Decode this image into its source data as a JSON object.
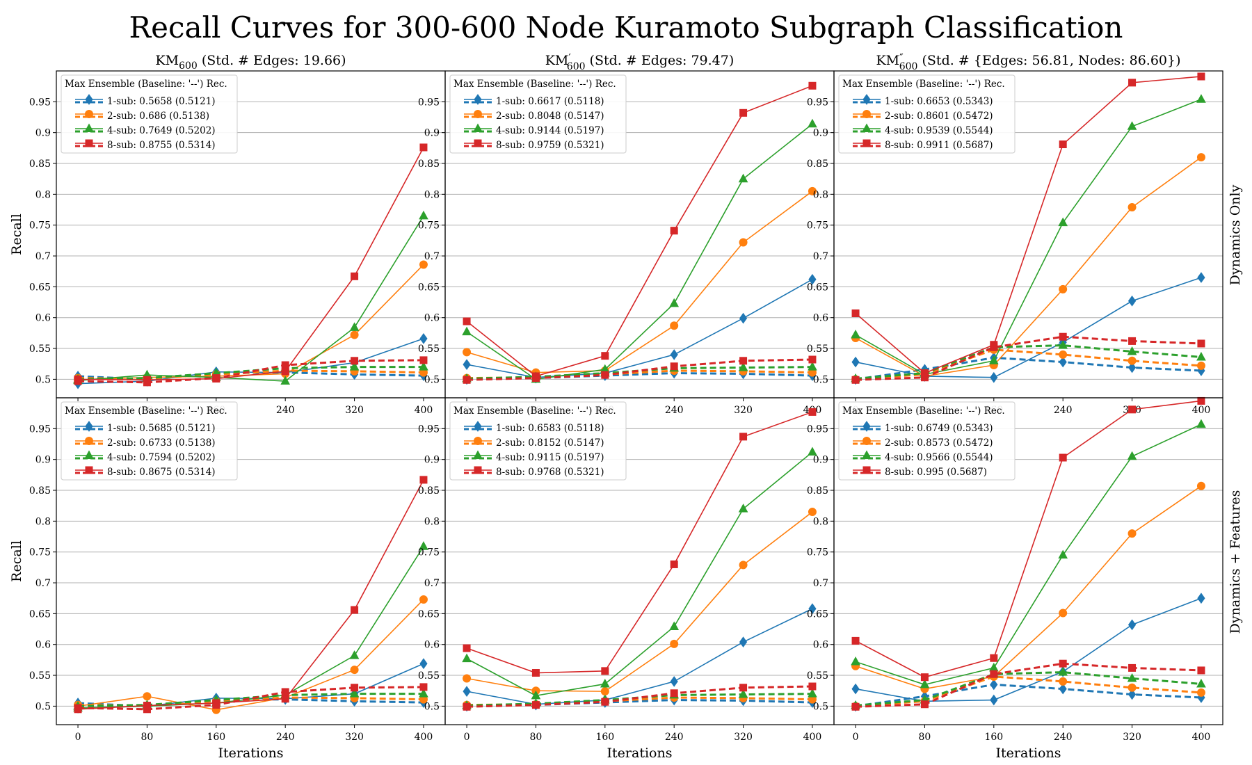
{
  "figure": {
    "suptitle": "Recall Curves for 300-600 Node Kuramoto Subgraph Classification",
    "row_labels": [
      "Dynamics Only",
      "Dynamics + Features"
    ],
    "col_titles": [
      {
        "base": "KM",
        "mark": "",
        "sub": "600",
        "rest": " (Std. # Edges: 19.66)"
      },
      {
        "base": "KM",
        "mark": "′",
        "sub": "600",
        "rest": " (Std. # Edges: 79.47)"
      },
      {
        "base": "KM",
        "mark": "″",
        "sub": "600",
        "rest": " (Std. # {Edges: 56.81, Nodes: 86.60})"
      }
    ],
    "xlabel": "Iterations",
    "ylabel": "Recall",
    "legend_title": "Max Ensemble (Baseline: '--') Rec.",
    "colors": {
      "1-sub": "#1f77b4",
      "2-sub": "#ff7f0e",
      "4-sub": "#2ca02c",
      "8-sub": "#d62728"
    },
    "markers": {
      "1-sub": "diamond",
      "2-sub": "circle",
      "4-sub": "triangle",
      "8-sub": "square"
    }
  },
  "chart_data": [
    {
      "type": "line",
      "row": 0,
      "col": 0,
      "x": [
        0,
        80,
        160,
        240,
        320,
        400
      ],
      "ylim": [
        0.47,
        1.0
      ],
      "yticks": [
        0.5,
        0.55,
        0.6,
        0.65,
        0.7,
        0.75,
        0.8,
        0.85,
        0.9,
        0.95
      ],
      "series": [
        {
          "name": "1-sub",
          "legend": "1-sub: 0.5658 (0.5121)",
          "values": [
            0.493,
            0.497,
            0.512,
            0.511,
            0.527,
            0.566
          ],
          "baseline": [
            0.505,
            0.5,
            0.51,
            0.511,
            0.508,
            0.506
          ]
        },
        {
          "name": "2-sub",
          "legend": "2-sub: 0.686 (0.5138)",
          "values": [
            0.499,
            0.503,
            0.505,
            0.509,
            0.572,
            0.686
          ],
          "baseline": [
            0.502,
            0.501,
            0.508,
            0.514,
            0.513,
            0.511
          ]
        },
        {
          "name": "4-sub",
          "legend": "4-sub: 0.7649 (0.5202)",
          "values": [
            0.498,
            0.507,
            0.503,
            0.497,
            0.584,
            0.765
          ],
          "baseline": [
            0.5,
            0.502,
            0.51,
            0.518,
            0.52,
            0.52
          ]
        },
        {
          "name": "8-sub",
          "legend": "8-sub: 0.8755 (0.5314)",
          "values": [
            0.5,
            0.499,
            0.501,
            0.513,
            0.667,
            0.876
          ],
          "baseline": [
            0.497,
            0.495,
            0.502,
            0.523,
            0.53,
            0.531
          ]
        }
      ]
    },
    {
      "type": "line",
      "row": 0,
      "col": 1,
      "x": [
        0,
        80,
        160,
        240,
        320,
        400
      ],
      "ylim": [
        0.47,
        1.0
      ],
      "yticks": [
        0.5,
        0.55,
        0.6,
        0.65,
        0.7,
        0.75,
        0.8,
        0.85,
        0.9,
        0.95
      ],
      "series": [
        {
          "name": "1-sub",
          "legend": "1-sub: 0.6617 (0.5118)",
          "values": [
            0.524,
            0.503,
            0.51,
            0.54,
            0.599,
            0.662
          ],
          "baseline": [
            0.5,
            0.502,
            0.506,
            0.51,
            0.509,
            0.506
          ]
        },
        {
          "name": "2-sub",
          "legend": "2-sub: 0.8048 (0.5147)",
          "values": [
            0.544,
            0.511,
            0.514,
            0.587,
            0.722,
            0.805
          ],
          "baseline": [
            0.502,
            0.503,
            0.508,
            0.514,
            0.513,
            0.511
          ]
        },
        {
          "name": "4-sub",
          "legend": "4-sub: 0.9144 (0.5197)",
          "values": [
            0.577,
            0.5,
            0.516,
            0.623,
            0.825,
            0.914
          ],
          "baseline": [
            0.501,
            0.504,
            0.51,
            0.518,
            0.519,
            0.52
          ]
        },
        {
          "name": "8-sub",
          "legend": "8-sub: 0.9759 (0.5321)",
          "values": [
            0.594,
            0.505,
            0.538,
            0.741,
            0.932,
            0.976
          ],
          "baseline": [
            0.499,
            0.502,
            0.507,
            0.521,
            0.53,
            0.532
          ]
        }
      ]
    },
    {
      "type": "line",
      "row": 0,
      "col": 2,
      "x": [
        0,
        80,
        160,
        240,
        320,
        400
      ],
      "ylim": [
        0.47,
        1.0
      ],
      "yticks": [
        0.5,
        0.55,
        0.6,
        0.65,
        0.7,
        0.75,
        0.8,
        0.85,
        0.9,
        0.95
      ],
      "series": [
        {
          "name": "1-sub",
          "legend": "1-sub: 0.6653 (0.5343)",
          "values": [
            0.528,
            0.505,
            0.503,
            0.56,
            0.627,
            0.665
          ],
          "baseline": [
            0.5,
            0.516,
            0.535,
            0.528,
            0.519,
            0.514
          ]
        },
        {
          "name": "2-sub",
          "legend": "2-sub: 0.8601 (0.5472)",
          "values": [
            0.567,
            0.505,
            0.523,
            0.646,
            0.779,
            0.86
          ],
          "baseline": [
            0.5,
            0.508,
            0.548,
            0.54,
            0.53,
            0.522
          ]
        },
        {
          "name": "4-sub",
          "legend": "4-sub: 0.9539 (0.5544)",
          "values": [
            0.572,
            0.508,
            0.53,
            0.754,
            0.91,
            0.954
          ],
          "baseline": [
            0.501,
            0.51,
            0.552,
            0.555,
            0.545,
            0.536
          ]
        },
        {
          "name": "8-sub",
          "legend": "8-sub: 0.9911 (0.5687)",
          "values": [
            0.607,
            0.51,
            0.556,
            0.881,
            0.981,
            0.991
          ],
          "baseline": [
            0.499,
            0.503,
            0.552,
            0.569,
            0.562,
            0.558
          ]
        }
      ]
    },
    {
      "type": "line",
      "row": 1,
      "col": 0,
      "x": [
        0,
        80,
        160,
        240,
        320,
        400
      ],
      "ylim": [
        0.47,
        1.0
      ],
      "yticks": [
        0.5,
        0.55,
        0.6,
        0.65,
        0.7,
        0.75,
        0.8,
        0.85,
        0.9,
        0.95
      ],
      "series": [
        {
          "name": "1-sub",
          "legend": "1-sub: 0.5685 (0.5121)",
          "values": [
            0.497,
            0.5,
            0.513,
            0.512,
            0.52,
            0.569
          ],
          "baseline": [
            0.505,
            0.5,
            0.51,
            0.511,
            0.508,
            0.506
          ]
        },
        {
          "name": "2-sub",
          "legend": "2-sub: 0.6733 (0.5138)",
          "values": [
            0.5,
            0.516,
            0.494,
            0.514,
            0.559,
            0.673
          ],
          "baseline": [
            0.502,
            0.501,
            0.508,
            0.514,
            0.513,
            0.511
          ]
        },
        {
          "name": "4-sub",
          "legend": "4-sub: 0.7594 (0.5202)",
          "values": [
            0.497,
            0.5,
            0.505,
            0.518,
            0.582,
            0.759
          ],
          "baseline": [
            0.5,
            0.502,
            0.51,
            0.518,
            0.52,
            0.52
          ]
        },
        {
          "name": "8-sub",
          "legend": "8-sub: 0.8675 (0.5314)",
          "values": [
            0.495,
            0.501,
            0.505,
            0.512,
            0.656,
            0.867
          ],
          "baseline": [
            0.497,
            0.495,
            0.502,
            0.523,
            0.53,
            0.531
          ]
        }
      ]
    },
    {
      "type": "line",
      "row": 1,
      "col": 1,
      "x": [
        0,
        80,
        160,
        240,
        320,
        400
      ],
      "ylim": [
        0.47,
        1.0
      ],
      "yticks": [
        0.5,
        0.55,
        0.6,
        0.65,
        0.7,
        0.75,
        0.8,
        0.85,
        0.9,
        0.95
      ],
      "series": [
        {
          "name": "1-sub",
          "legend": "1-sub: 0.6583 (0.5118)",
          "values": [
            0.524,
            0.503,
            0.51,
            0.54,
            0.604,
            0.658
          ],
          "baseline": [
            0.5,
            0.502,
            0.506,
            0.51,
            0.509,
            0.506
          ]
        },
        {
          "name": "2-sub",
          "legend": "2-sub: 0.8152 (0.5147)",
          "values": [
            0.545,
            0.525,
            0.524,
            0.601,
            0.729,
            0.815
          ],
          "baseline": [
            0.502,
            0.503,
            0.508,
            0.514,
            0.513,
            0.511
          ]
        },
        {
          "name": "4-sub",
          "legend": "4-sub: 0.9115 (0.5197)",
          "values": [
            0.577,
            0.517,
            0.536,
            0.629,
            0.82,
            0.912
          ],
          "baseline": [
            0.501,
            0.504,
            0.51,
            0.518,
            0.519,
            0.52
          ]
        },
        {
          "name": "8-sub",
          "legend": "8-sub: 0.9768 (0.5321)",
          "values": [
            0.594,
            0.554,
            0.557,
            0.73,
            0.937,
            0.977
          ],
          "baseline": [
            0.499,
            0.502,
            0.507,
            0.521,
            0.53,
            0.532
          ]
        }
      ]
    },
    {
      "type": "line",
      "row": 1,
      "col": 2,
      "x": [
        0,
        80,
        160,
        240,
        320,
        400
      ],
      "ylim": [
        0.47,
        1.0
      ],
      "yticks": [
        0.5,
        0.55,
        0.6,
        0.65,
        0.7,
        0.75,
        0.8,
        0.85,
        0.9,
        0.95
      ],
      "series": [
        {
          "name": "1-sub",
          "legend": "1-sub: 0.6749 (0.5343)",
          "values": [
            0.528,
            0.508,
            0.51,
            0.556,
            0.632,
            0.675
          ],
          "baseline": [
            0.5,
            0.516,
            0.535,
            0.528,
            0.519,
            0.514
          ]
        },
        {
          "name": "2-sub",
          "legend": "2-sub: 0.8573 (0.5472)",
          "values": [
            0.565,
            0.528,
            0.548,
            0.651,
            0.78,
            0.857
          ],
          "baseline": [
            0.5,
            0.508,
            0.548,
            0.54,
            0.53,
            0.522
          ]
        },
        {
          "name": "4-sub",
          "legend": "4-sub: 0.9566 (0.5544)",
          "values": [
            0.572,
            0.535,
            0.562,
            0.745,
            0.905,
            0.957
          ],
          "baseline": [
            0.501,
            0.51,
            0.552,
            0.555,
            0.545,
            0.536
          ]
        },
        {
          "name": "8-sub",
          "legend": "8-sub: 0.995 (0.5687)",
          "values": [
            0.606,
            0.547,
            0.578,
            0.903,
            0.981,
            0.995
          ],
          "baseline": [
            0.499,
            0.503,
            0.552,
            0.569,
            0.562,
            0.558
          ]
        }
      ]
    }
  ]
}
